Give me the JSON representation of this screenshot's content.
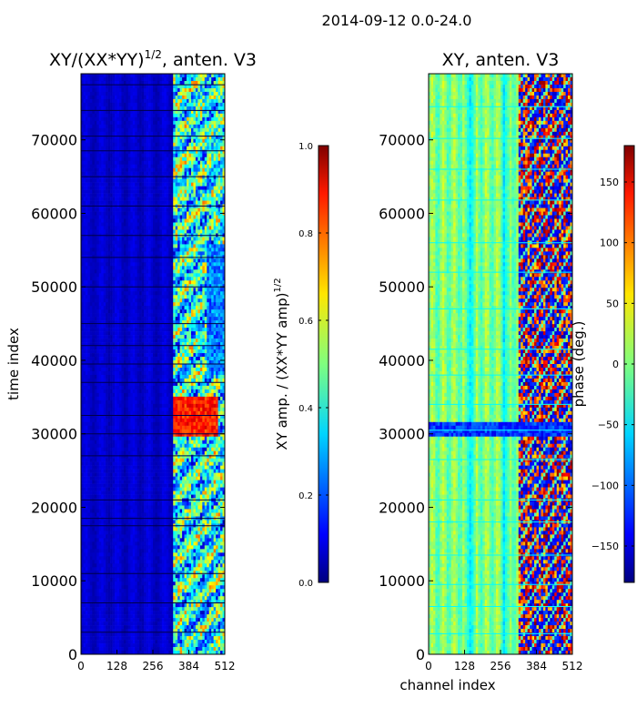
{
  "figure_title": "2014-09-12 0.0-24.0",
  "colors": {
    "jet": [
      "#00007f",
      "#0000ff",
      "#007fff",
      "#00ffff",
      "#7fff7f",
      "#ffff00",
      "#ff7f00",
      "#ff0000",
      "#7f0000"
    ]
  },
  "chart_data": [
    {
      "type": "heatmap",
      "title_prefix": "XY/(XX*YY)",
      "title_exponent": "1/2",
      "title_suffix": ", anten. V3",
      "xlabel": "",
      "ylabel": "time index",
      "xlim": [
        0,
        512
      ],
      "ylim": [
        0,
        79000
      ],
      "x_ticks": [
        "0",
        "128",
        "256",
        "384",
        "512"
      ],
      "y_ticks": [
        "0",
        "10000",
        "20000",
        "30000",
        "40000",
        "50000",
        "60000",
        "70000"
      ],
      "colorbar": {
        "label_text": "XY amp. / (XX*YY amp)",
        "label_exponent": "1/2",
        "range": [
          0.0,
          1.0
        ],
        "ticks": [
          "0.0",
          "0.2",
          "0.4",
          "0.6",
          "0.8",
          "1.0"
        ]
      },
      "description_values": {
        "background_level": 0.08,
        "rfi_band_channels": [
          330,
          512
        ],
        "rfi_band_level": 0.4,
        "hot_block": {
          "channels": [
            325,
            490
          ],
          "time": [
            29500,
            35000
          ],
          "level": 0.85
        }
      }
    },
    {
      "type": "heatmap",
      "title": "XY, anten. V3",
      "xlabel": "channel index",
      "ylabel": "",
      "xlim": [
        0,
        512
      ],
      "ylim": [
        0,
        79000
      ],
      "x_ticks": [
        "0",
        "128",
        "256",
        "384",
        "512"
      ],
      "y_ticks": [
        "0",
        "10000",
        "20000",
        "30000",
        "40000",
        "50000",
        "60000",
        "70000"
      ],
      "colorbar": {
        "label_text": "phase (deg.)",
        "range": [
          -180,
          180
        ],
        "ticks": [
          "150",
          "100",
          "50",
          "0",
          "−50",
          "−100",
          "−150"
        ]
      },
      "description_values": {
        "background_phase": 0,
        "rfi_band_channels": [
          320,
          512
        ]
      }
    }
  ]
}
